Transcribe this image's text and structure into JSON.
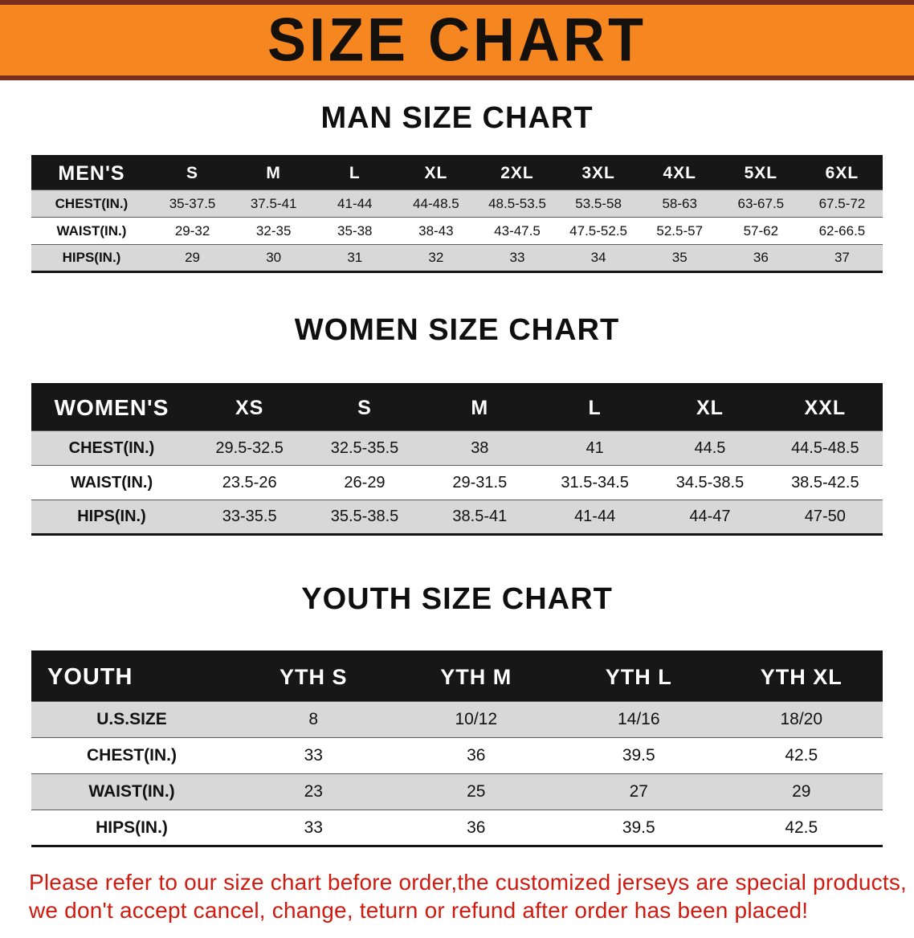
{
  "banner": {
    "title": "SIZE CHART",
    "background": "#f6861f",
    "edge_color": "#7a2f1c"
  },
  "sections": [
    {
      "heading": "MAN SIZE CHART",
      "table": {
        "header": [
          "MEN'S",
          "S",
          "M",
          "L",
          "XL",
          "2XL",
          "3XL",
          "4XL",
          "5XL",
          "6XL"
        ],
        "rows": [
          [
            "CHEST(IN.)",
            "35-37.5",
            "37.5-41",
            "41-44",
            "44-48.5",
            "48.5-53.5",
            "53.5-58",
            "58-63",
            "63-67.5",
            "67.5-72"
          ],
          [
            "WAIST(IN.)",
            "29-32",
            "32-35",
            "35-38",
            "38-43",
            "43-47.5",
            "47.5-52.5",
            "52.5-57",
            "57-62",
            "62-66.5"
          ],
          [
            "HIPS(IN.)",
            "29",
            "30",
            "31",
            "32",
            "33",
            "34",
            "35",
            "36",
            "37"
          ]
        ]
      }
    },
    {
      "heading": "WOMEN SIZE CHART",
      "table": {
        "header": [
          "WOMEN'S",
          "XS",
          "S",
          "M",
          "L",
          "XL",
          "XXL"
        ],
        "rows": [
          [
            "CHEST(IN.)",
            "29.5-32.5",
            "32.5-35.5",
            "38",
            "41",
            "44.5",
            "44.5-48.5"
          ],
          [
            "WAIST(IN.)",
            "23.5-26",
            "26-29",
            "29-31.5",
            "31.5-34.5",
            "34.5-38.5",
            "38.5-42.5"
          ],
          [
            "HIPS(IN.)",
            "33-35.5",
            "35.5-38.5",
            "38.5-41",
            "41-44",
            "44-47",
            "47-50"
          ]
        ]
      }
    },
    {
      "heading": "YOUTH SIZE CHART",
      "table": {
        "header": [
          "YOUTH",
          "YTH S",
          "YTH M",
          "YTH L",
          "YTH XL"
        ],
        "rows": [
          [
            "U.S.SIZE",
            "8",
            "10/12",
            "14/16",
            "18/20"
          ],
          [
            "CHEST(IN.)",
            "33",
            "36",
            "39.5",
            "42.5"
          ],
          [
            "WAIST(IN.)",
            "23",
            "25",
            "27",
            "29"
          ],
          [
            "HIPS(IN.)",
            "33",
            "36",
            "39.5",
            "42.5"
          ]
        ]
      }
    }
  ],
  "disclaimer": {
    "line1": "Please refer to our size chart before order,the customized jerseys are special products,",
    "line2": "we don't accept cancel, change, teturn or refund after order has been placed!",
    "color": "#d11a0f"
  }
}
